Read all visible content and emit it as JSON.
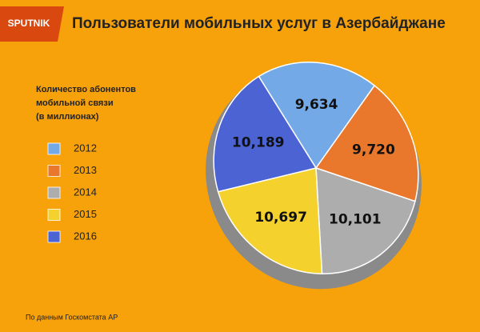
{
  "logo": "SPUTNIK",
  "chart_data": {
    "type": "pie",
    "title": "Пользователи мобильных услуг в Азербайджане",
    "subtitle": [
      "Количество абонентов",
      "мобильной связи",
      "(в миллионах)"
    ],
    "categories": [
      "2012",
      "2013",
      "2014",
      "2015",
      "2016"
    ],
    "values": [
      9.634,
      9.72,
      10.101,
      10.697,
      10.189
    ],
    "value_labels": [
      "9,634",
      "9,720",
      "10,101",
      "10,697",
      "10,189"
    ],
    "colors": [
      "#74a9e8",
      "#e9782c",
      "#adadad",
      "#f4d12c",
      "#4b63d3"
    ],
    "source": "По данным Госкомстата АР"
  }
}
